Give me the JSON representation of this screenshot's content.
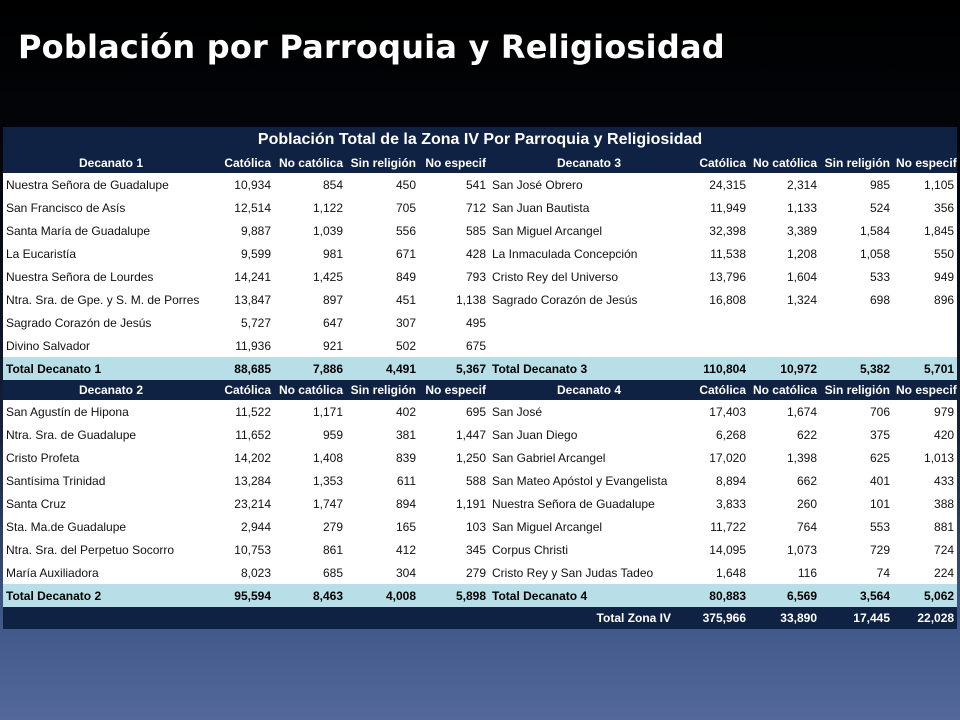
{
  "slide_title": "Población por Parroquia y Religiosidad",
  "table_title": "Población Total de la Zona IV Por Parroquia y Religiosidad",
  "columns": [
    "Católica",
    "No católica",
    "Sin religión",
    "No especif"
  ],
  "block1": {
    "left_header": "Decanato 1",
    "right_header": "Decanato 3",
    "rows": [
      [
        "Nuestra Señora de Guadalupe",
        "10,934",
        "854",
        "450",
        "541",
        "San José Obrero",
        "24,315",
        "2,314",
        "985",
        "1,105"
      ],
      [
        "San Francisco de Asís",
        "12,514",
        "1,122",
        "705",
        "712",
        "San Juan Bautista",
        "11,949",
        "1,133",
        "524",
        "356"
      ],
      [
        "Santa María de Guadalupe",
        "9,887",
        "1,039",
        "556",
        "585",
        "San Miguel Arcangel",
        "32,398",
        "3,389",
        "1,584",
        "1,845"
      ],
      [
        "La Eucaristía",
        "9,599",
        "981",
        "671",
        "428",
        "La Inmaculada Concepción",
        "11,538",
        "1,208",
        "1,058",
        "550"
      ],
      [
        "Nuestra Señora de Lourdes",
        "14,241",
        "1,425",
        "849",
        "793",
        "Cristo Rey del Universo",
        "13,796",
        "1,604",
        "533",
        "949"
      ],
      [
        "Ntra. Sra. de Gpe. y S. M. de Porres",
        "13,847",
        "897",
        "451",
        "1,138",
        "Sagrado Corazón de Jesús",
        "16,808",
        "1,324",
        "698",
        "896"
      ],
      [
        "Sagrado Corazón de Jesús",
        "5,727",
        "647",
        "307",
        "495",
        "",
        "",
        "",
        "",
        ""
      ],
      [
        "Divino Salvador",
        "11,936",
        "921",
        "502",
        "675",
        "",
        "",
        "",
        "",
        ""
      ]
    ],
    "total": [
      "Total Decanato 1",
      "88,685",
      "7,886",
      "4,491",
      "5,367",
      "Total Decanato 3",
      "110,804",
      "10,972",
      "5,382",
      "5,701"
    ]
  },
  "block2": {
    "left_header": "Decanato 2",
    "right_header": "Decanato 4",
    "rows": [
      [
        "San Agustín de Hipona",
        "11,522",
        "1,171",
        "402",
        "695",
        "San José",
        "17,403",
        "1,674",
        "706",
        "979"
      ],
      [
        "Ntra. Sra. de Guadalupe",
        "11,652",
        "959",
        "381",
        "1,447",
        "San Juan Diego",
        "6,268",
        "622",
        "375",
        "420"
      ],
      [
        "Cristo Profeta",
        "14,202",
        "1,408",
        "839",
        "1,250",
        "San Gabriel Arcangel",
        "17,020",
        "1,398",
        "625",
        "1,013"
      ],
      [
        "Santísima Trinidad",
        "13,284",
        "1,353",
        "611",
        "588",
        "San Mateo Apóstol y Evangelista",
        "8,894",
        "662",
        "401",
        "433"
      ],
      [
        "Santa Cruz",
        "23,214",
        "1,747",
        "894",
        "1,191",
        "Nuestra Señora de Guadalupe",
        "3,833",
        "260",
        "101",
        "388"
      ],
      [
        "Sta. Ma.de Guadalupe",
        "2,944",
        "279",
        "165",
        "103",
        "San Miguel Arcangel",
        "11,722",
        "764",
        "553",
        "881"
      ],
      [
        "Ntra. Sra. del Perpetuo Socorro",
        "10,753",
        "861",
        "412",
        "345",
        "Corpus Christi",
        "14,095",
        "1,073",
        "729",
        "724"
      ],
      [
        "María Auxiliadora",
        "8,023",
        "685",
        "304",
        "279",
        " Cristo Rey y San Judas Tadeo",
        "1,648",
        "116",
        "74",
        "224"
      ]
    ],
    "total": [
      "Total Decanato 2",
      "95,594",
      "8,463",
      "4,008",
      "5,898",
      "Total Decanato 4",
      "80,883",
      "6,569",
      "3,564",
      "5,062"
    ]
  },
  "grand_total": [
    "Total Zona IV",
    "375,966",
    "33,890",
    "17,445",
    "22,028"
  ]
}
